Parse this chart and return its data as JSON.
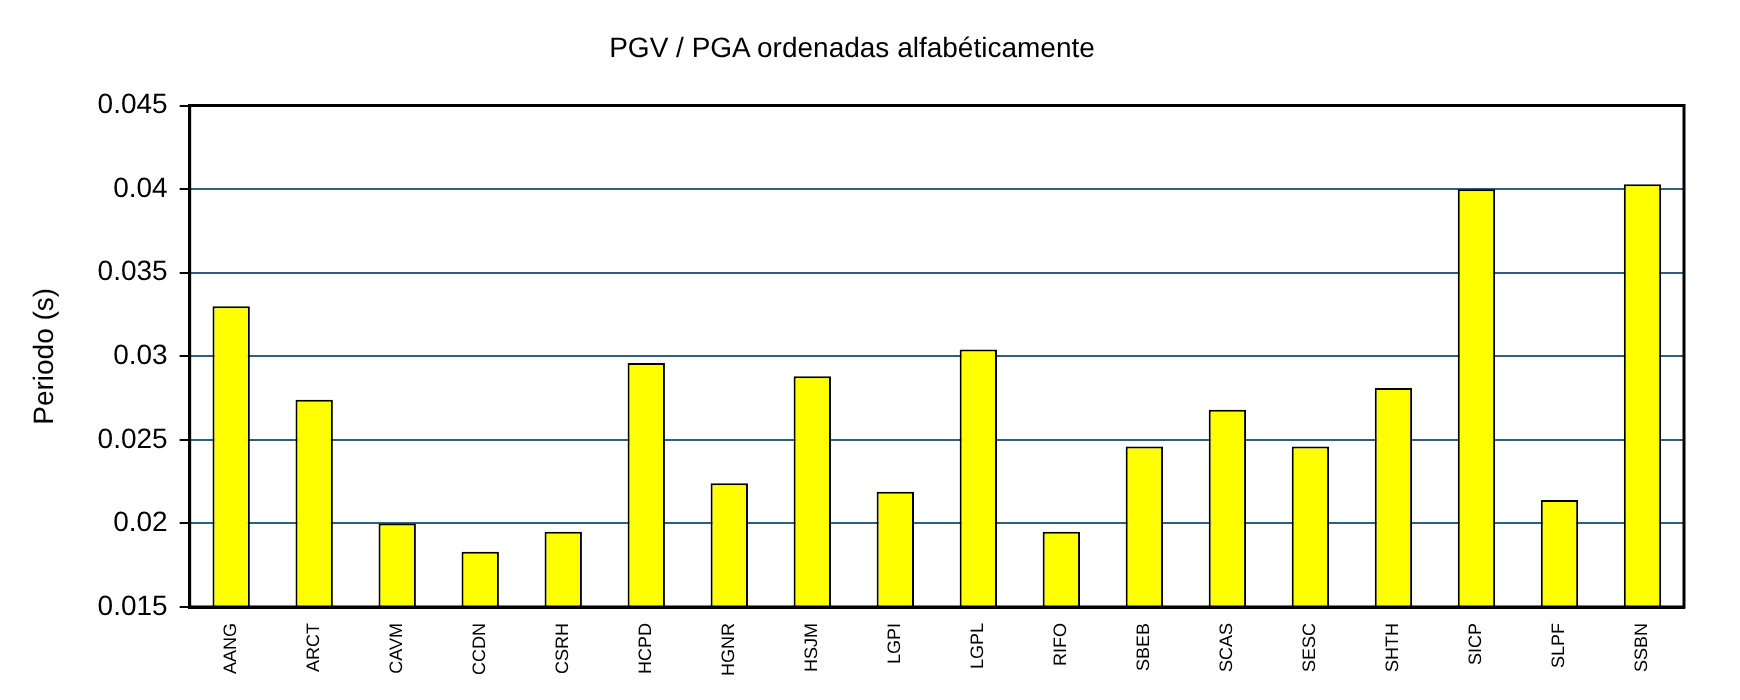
{
  "chart_data": {
    "type": "bar",
    "title": "PGV / PGA ordenadas alfabéticamente",
    "ylabel": "Periodo (s)",
    "categories": [
      "AANG",
      "ARCT",
      "CAVM",
      "CCDN",
      "CSRH",
      "HCPD",
      "HGNR",
      "HSJM",
      "LGPI",
      "LGPL",
      "RIFO",
      "SBEB",
      "SCAS",
      "SESC",
      "SHTH",
      "SICP",
      "SLPF",
      "SSBN"
    ],
    "values": [
      0.033,
      0.0274,
      0.02,
      0.0183,
      0.0195,
      0.0296,
      0.0224,
      0.0288,
      0.0219,
      0.0304,
      0.0195,
      0.0246,
      0.0268,
      0.0246,
      0.0281,
      0.04,
      0.0214,
      0.0403
    ],
    "color": "#ffff00",
    "ylim": [
      0.015,
      0.045
    ],
    "yticks": [
      0.015,
      0.02,
      0.025,
      0.03,
      0.035,
      0.04,
      0.045
    ],
    "grid": "y",
    "legend": false
  }
}
